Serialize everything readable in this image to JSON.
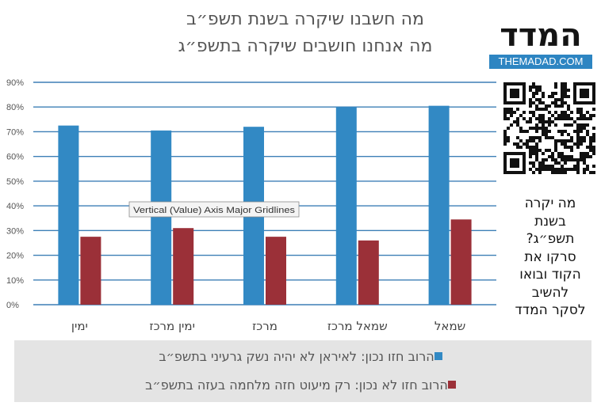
{
  "title": {
    "line1": "מה חשבנו שיקרה בשנת תשפ״ב",
    "line2": "מה אנחנו חושבים שיקרה בתשפ״ג"
  },
  "logo": {
    "name": "המדד",
    "site": "THEMADAD.COM"
  },
  "side_text": [
    "מה יקרה",
    "בשנת",
    "תשפ״ג?",
    "סרקו את",
    "הקוד ובואו",
    "להשיב",
    "לסקר המדד"
  ],
  "tooltip": "Vertical (Value) Axis Major Gridlines",
  "colors": {
    "series1": "#3289c4",
    "series2": "#9b3038",
    "grid": "#3d7fb6",
    "legend_bg": "#e4e4e4"
  },
  "icons": {
    "qr": "qr-code-icon"
  },
  "chart_data": {
    "type": "bar",
    "categories": [
      "ימין",
      "ימין מרכז",
      "מרכז",
      "שמאל מרכז",
      "שמאל"
    ],
    "series": [
      {
        "name": "הרוב חזו נכון: לאיראן לא יהיה נשק גרעיני בתשפ״ב",
        "values": [
          72.5,
          70.5,
          72,
          80,
          80.5
        ]
      },
      {
        "name": "הרוב חזו לא נכון: רק מיעוט חזה מלחמה בעזה בתשפ״ב",
        "values": [
          27.5,
          31,
          27.5,
          26,
          34.5
        ]
      }
    ],
    "yticks": [
      "0%",
      "10%",
      "20%",
      "30%",
      "40%",
      "50%",
      "60%",
      "70%",
      "80%",
      "90%"
    ],
    "ylim": [
      0,
      90
    ],
    "grid": true,
    "legend_position": "bottom"
  }
}
